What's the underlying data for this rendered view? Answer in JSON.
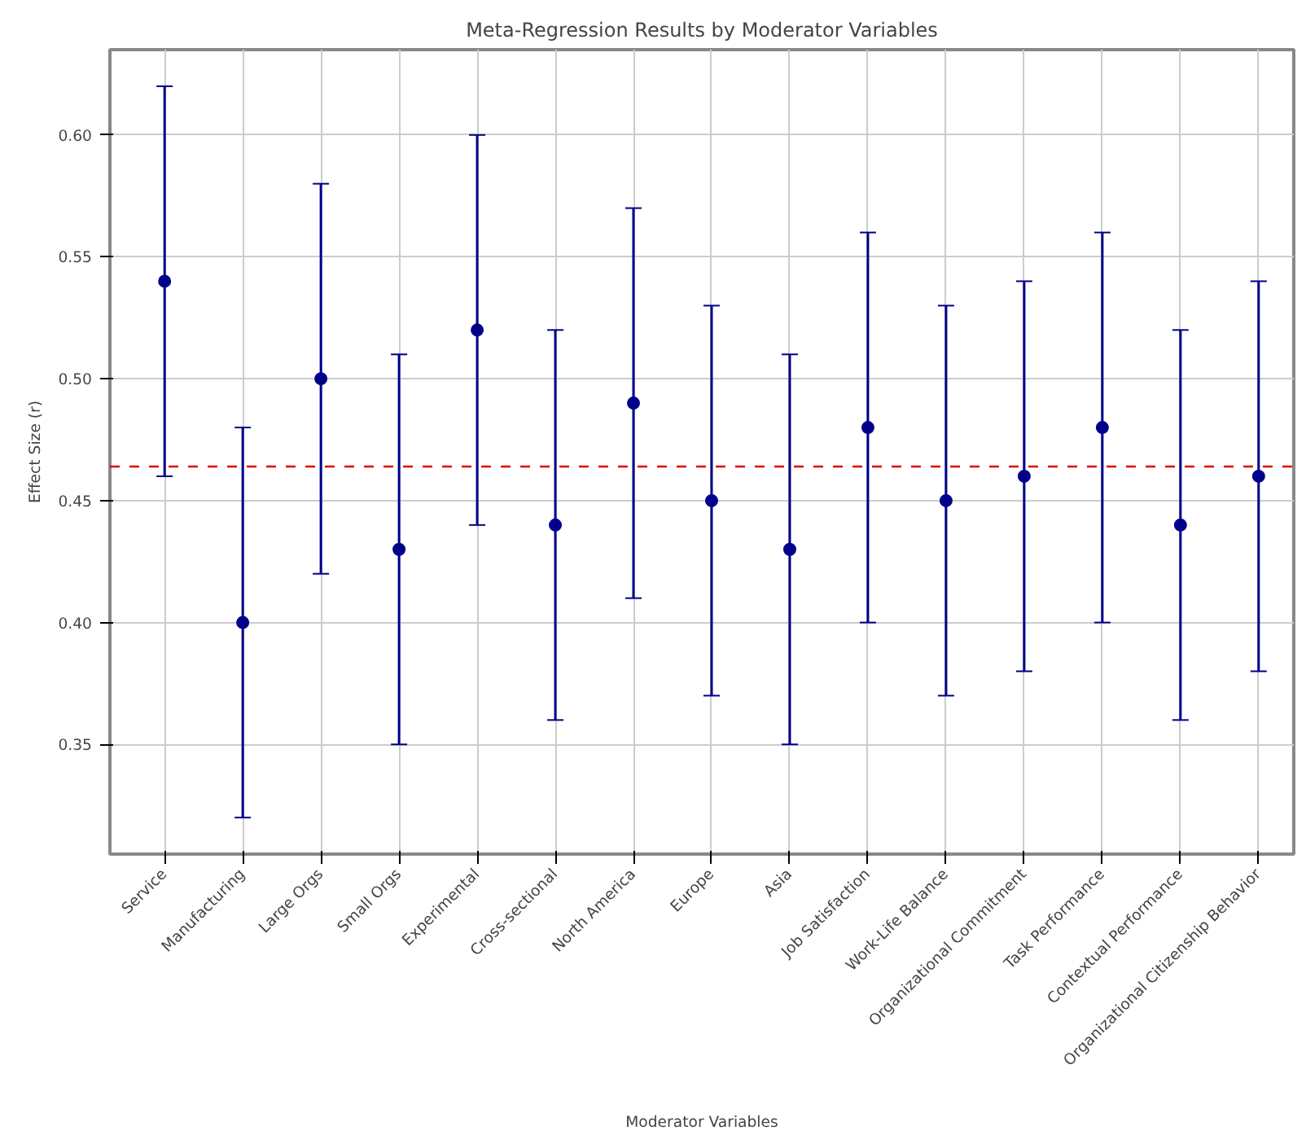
{
  "chart_data": {
    "type": "scatter",
    "title": "Meta-Regression Results by Moderator Variables",
    "xlabel": "Moderator Variables",
    "ylabel": "Effect Size (r)",
    "categories": [
      "Service",
      "Manufacturing",
      "Large Orgs",
      "Small Orgs",
      "Experimental",
      "Cross-sectional",
      "North America",
      "Europe",
      "Asia",
      "Job Satisfaction",
      "Work-Life Balance",
      "Organizational Commitment",
      "Task Performance",
      "Contextual Performance",
      "Organizational Citizenship Behavior"
    ],
    "series": [
      {
        "color": "#00008b",
        "values": [
          0.54,
          0.4,
          0.5,
          0.43,
          0.52,
          0.44,
          0.49,
          0.45,
          0.43,
          0.48,
          0.45,
          0.46,
          0.48,
          0.44,
          0.46
        ],
        "errors": [
          0.08,
          0.08,
          0.08,
          0.08,
          0.08,
          0.08,
          0.08,
          0.08,
          0.08,
          0.08,
          0.08,
          0.08,
          0.08,
          0.08,
          0.08
        ]
      }
    ],
    "ylim": [
      0.305,
      0.635
    ],
    "yticks": [
      {
        "value": 0.35,
        "label": "0.35"
      },
      {
        "value": 0.4,
        "label": "0.40"
      },
      {
        "value": 0.45,
        "label": "0.45"
      },
      {
        "value": 0.5,
        "label": "0.50"
      },
      {
        "value": 0.55,
        "label": "0.55"
      },
      {
        "value": 0.6,
        "label": "0.60"
      }
    ],
    "ref_lines": [
      {
        "axis": "y",
        "value": 0.464,
        "label": null,
        "color": "#dd0000",
        "line_style": "dashed"
      }
    ],
    "grid": true,
    "marker": "circle"
  }
}
